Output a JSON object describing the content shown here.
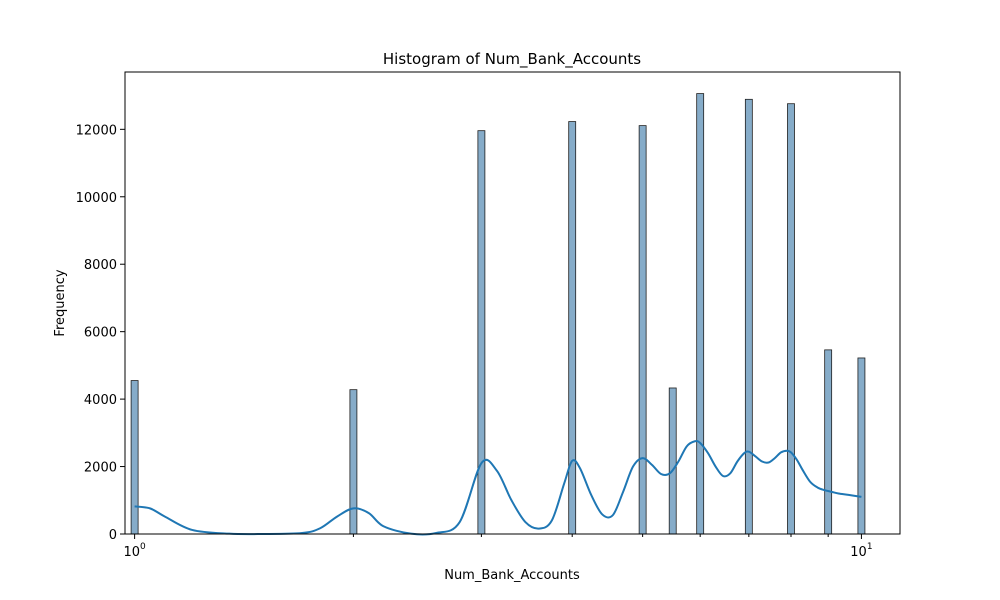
{
  "chart_data": {
    "type": "bar",
    "title": "Histogram of Num_Bank_Accounts",
    "xlabel": "Num_Bank_Accounts",
    "ylabel": "Frequency",
    "xscale": "log",
    "xlim": [
      0.97,
      11.3
    ],
    "ylim": [
      0,
      13700
    ],
    "y_ticks": [
      0,
      2000,
      4000,
      6000,
      8000,
      10000,
      12000
    ],
    "x_ticks": [
      {
        "value": 1,
        "base": "10",
        "exp": "0"
      },
      {
        "value": 10,
        "base": "10",
        "exp": "1"
      }
    ],
    "grid": false,
    "series": [
      {
        "bins": [
          {
            "x": 1,
            "count": 4550
          },
          {
            "x": 2,
            "count": 4280
          },
          {
            "x": 3,
            "count": 11960
          },
          {
            "x": 4,
            "count": 12230
          },
          {
            "x": 5,
            "count": 12110
          },
          {
            "x": 5.5,
            "count": 4330
          },
          {
            "x": 6,
            "count": 13060
          },
          {
            "x": 7,
            "count": 12890
          },
          {
            "x": 8,
            "count": 12760
          },
          {
            "x": 9,
            "count": 5460
          },
          {
            "x": 10,
            "count": 5220
          }
        ]
      }
    ],
    "kde": {
      "x": [
        1.0,
        1.05,
        1.1,
        1.2,
        1.35,
        1.5,
        1.7,
        1.8,
        1.9,
        2.0,
        2.1,
        2.2,
        2.4,
        2.6,
        2.8,
        3.0,
        3.15,
        3.3,
        3.45,
        3.6,
        3.75,
        3.9,
        4.0,
        4.1,
        4.25,
        4.4,
        4.55,
        4.7,
        4.85,
        5.0,
        5.15,
        5.3,
        5.45,
        5.6,
        5.75,
        5.9,
        6.0,
        6.15,
        6.3,
        6.45,
        6.6,
        6.75,
        6.9,
        7.0,
        7.15,
        7.3,
        7.45,
        7.6,
        7.75,
        7.9,
        8.0,
        8.15,
        8.3,
        8.5,
        8.7,
        8.9,
        9.1,
        9.3,
        9.6,
        10.0
      ],
      "y": [
        820,
        760,
        520,
        120,
        10,
        0,
        30,
        170,
        520,
        760,
        620,
        230,
        10,
        30,
        350,
        2100,
        1880,
        1000,
        350,
        160,
        400,
        1500,
        2170,
        1950,
        1150,
        580,
        560,
        1250,
        2000,
        2250,
        2050,
        1780,
        1800,
        2150,
        2600,
        2750,
        2700,
        2400,
        2000,
        1720,
        1800,
        2150,
        2400,
        2440,
        2300,
        2150,
        2120,
        2250,
        2420,
        2470,
        2420,
        2200,
        1900,
        1550,
        1380,
        1300,
        1250,
        1200,
        1160,
        1100
      ]
    }
  }
}
